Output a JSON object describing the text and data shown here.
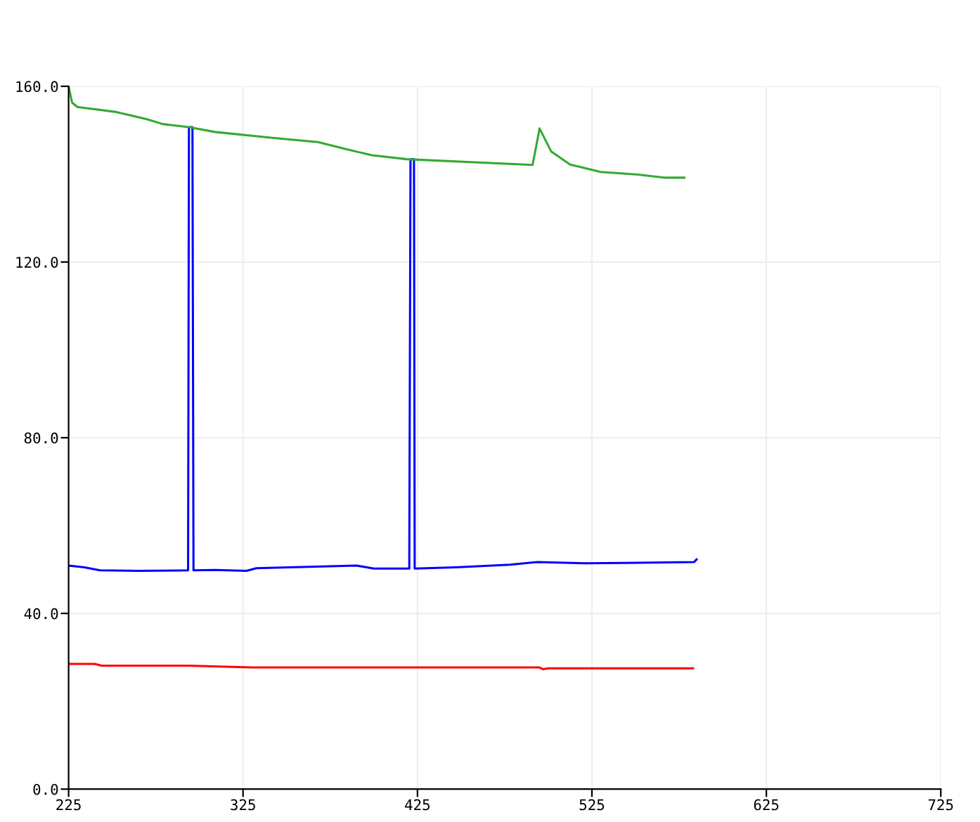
{
  "chart_data": {
    "type": "line",
    "xlim": [
      225,
      725
    ],
    "ylim": [
      0,
      160
    ],
    "xticks": [
      225,
      325,
      425,
      525,
      625,
      725
    ],
    "yticks": [
      {
        "value": 0,
        "label": "0.0"
      },
      {
        "value": 40,
        "label": "40.0"
      },
      {
        "value": 80,
        "label": "80.0"
      },
      {
        "value": 120,
        "label": "120.0"
      },
      {
        "value": 160,
        "label": "160.0"
      }
    ],
    "grid": true,
    "marker": "none",
    "line_style": "solid",
    "series": [
      {
        "color": "#ff0000",
        "x": [
          225,
          240,
          244,
          294,
          330,
          495,
          497,
          500,
          583
        ],
        "values": [
          28.5,
          28.5,
          28.1,
          28.1,
          27.7,
          27.7,
          27.3,
          27.5,
          27.5
        ]
      },
      {
        "color": "#0000ff",
        "x": [
          225,
          234,
          243,
          265,
          293.5,
          294,
          296,
          296.6,
          309,
          327,
          332.6,
          390,
          400,
          420.3,
          421,
          423,
          423.4,
          447,
          478,
          494,
          521,
          543.6,
          583.6,
          585
        ],
        "values": [
          50.9,
          50.5,
          49.8,
          49.7,
          49.8,
          150.7,
          150.7,
          49.8,
          49.9,
          49.7,
          50.3,
          50.9,
          50.2,
          50.2,
          143.4,
          143.4,
          50.2,
          50.5,
          51.1,
          51.7,
          51.4,
          51.5,
          51.7,
          52.3
        ]
      },
      {
        "color": "#33aa33",
        "x": [
          225,
          227,
          230,
          251.5,
          270,
          279,
          294,
          309,
          341,
          368,
          384,
          399,
          419,
          491,
          495,
          501.6,
          512.5,
          521,
          530,
          551.5,
          567,
          578
        ],
        "values": [
          160,
          156.3,
          155.3,
          154.2,
          152.5,
          151.4,
          150.7,
          149.6,
          148.3,
          147.3,
          145.7,
          144.3,
          143.4,
          142.1,
          150.4,
          145.2,
          142.2,
          141.4,
          140.5,
          139.9,
          139.2,
          139.2
        ]
      }
    ]
  }
}
